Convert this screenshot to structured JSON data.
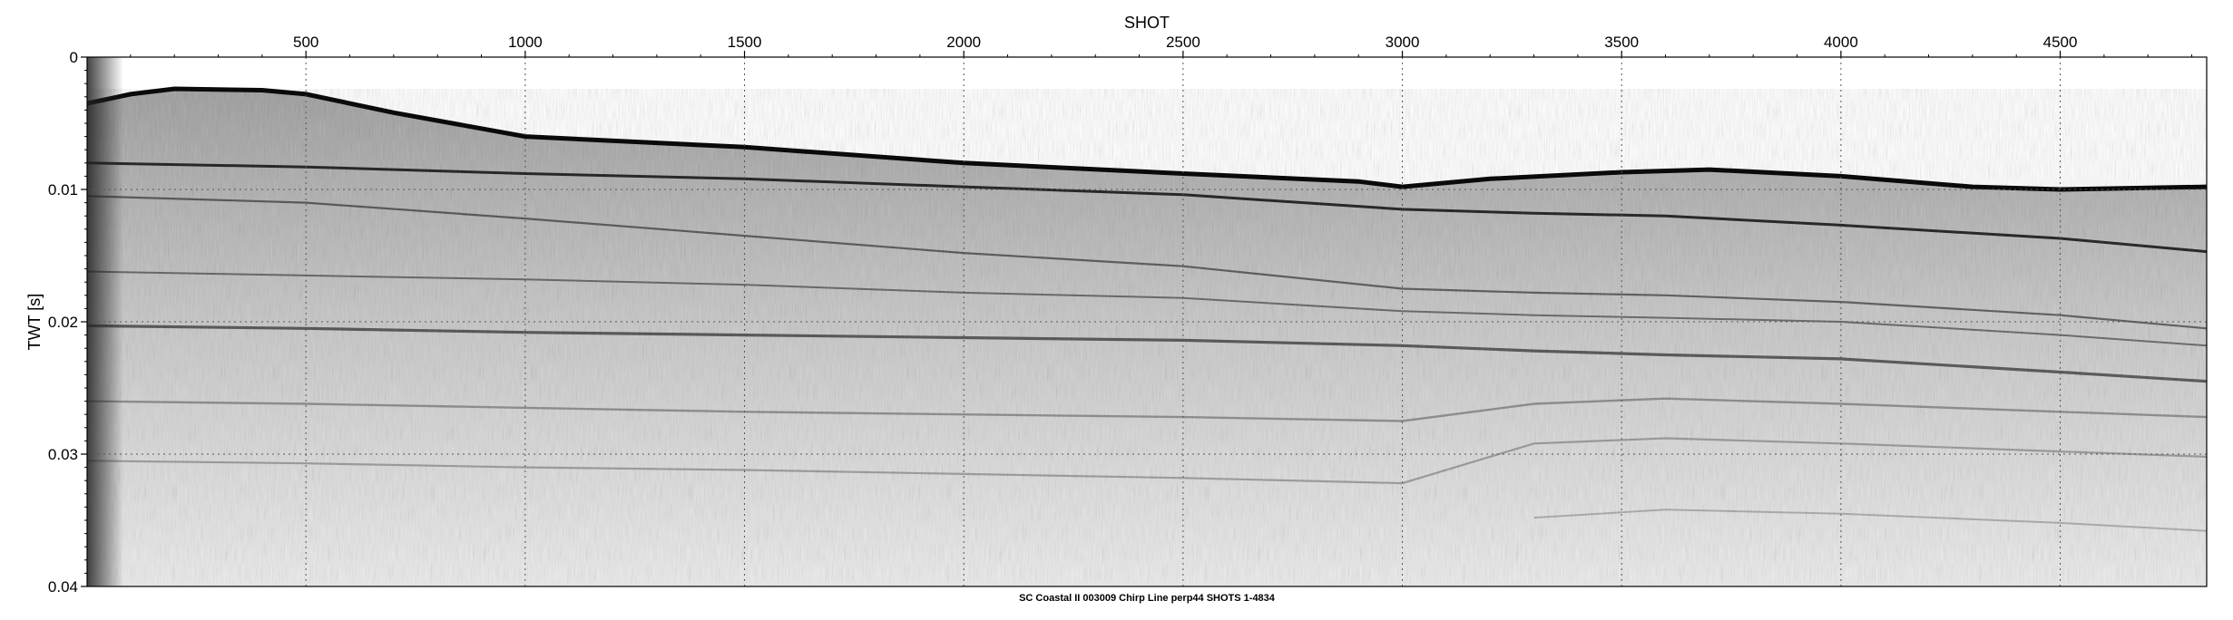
{
  "chart_data": {
    "type": "heatmap",
    "title": "",
    "caption": "SC Coastal II 003009 Chirp Line perp44 SHOTS 1-4834",
    "xlabel": "SHOT",
    "ylabel": "TWT [s]",
    "xlim": [
      1,
      4834
    ],
    "ylim": [
      0,
      0.04
    ],
    "x_ticks": [
      500,
      1000,
      1500,
      2000,
      2500,
      3000,
      3500,
      4000,
      4500
    ],
    "y_ticks": [
      0,
      0.01,
      0.02,
      0.03,
      0.04
    ],
    "y_tick_labels": [
      "0",
      "0.01",
      "0.02",
      "0.03",
      "0.04"
    ],
    "x_axis_position": "top",
    "grid": true,
    "colormap": "grayscale",
    "seafloor_twt": {
      "shot": [
        1,
        100,
        200,
        400,
        500,
        700,
        1000,
        1500,
        2000,
        2500,
        2900,
        3000,
        3200,
        3500,
        3700,
        4000,
        4300,
        4500,
        4834
      ],
      "twt": [
        0.0035,
        0.0028,
        0.0024,
        0.0025,
        0.0028,
        0.0042,
        0.006,
        0.0068,
        0.008,
        0.0088,
        0.0094,
        0.0098,
        0.0092,
        0.0087,
        0.0085,
        0.009,
        0.0098,
        0.01,
        0.0098
      ]
    },
    "reflectors": [
      {
        "shot": [
          1,
          500,
          1000,
          1500,
          2000,
          2500,
          3000,
          3300,
          3600,
          4000,
          4500,
          4834
        ],
        "twt": [
          0.008,
          0.0083,
          0.0088,
          0.0092,
          0.0098,
          0.0104,
          0.0115,
          0.0118,
          0.012,
          0.0127,
          0.0137,
          0.0147
        ]
      },
      {
        "shot": [
          1,
          500,
          1000,
          1500,
          2000,
          2500,
          3000,
          3300,
          3600,
          4000,
          4500,
          4834
        ],
        "twt": [
          0.0105,
          0.011,
          0.0122,
          0.0135,
          0.0148,
          0.0158,
          0.0175,
          0.0178,
          0.018,
          0.0185,
          0.0195,
          0.0205
        ]
      },
      {
        "shot": [
          1,
          500,
          1000,
          1500,
          2000,
          2500,
          3000,
          3300,
          3600,
          4000,
          4500,
          4834
        ],
        "twt": [
          0.0162,
          0.0165,
          0.0168,
          0.0172,
          0.0178,
          0.0182,
          0.0192,
          0.0195,
          0.0197,
          0.02,
          0.021,
          0.0218
        ]
      },
      {
        "shot": [
          1,
          500,
          1000,
          1500,
          2000,
          2500,
          3000,
          3300,
          3600,
          4000,
          4500,
          4834
        ],
        "twt": [
          0.0203,
          0.0205,
          0.0208,
          0.021,
          0.0212,
          0.0214,
          0.0218,
          0.0222,
          0.0225,
          0.0228,
          0.0238,
          0.0245
        ]
      },
      {
        "shot": [
          1,
          500,
          1000,
          1500,
          2000,
          2500,
          3000,
          3300,
          3600,
          4000,
          4500,
          4834
        ],
        "twt": [
          0.026,
          0.0262,
          0.0265,
          0.0268,
          0.027,
          0.0272,
          0.0275,
          0.0262,
          0.0258,
          0.0262,
          0.0268,
          0.0272
        ]
      },
      {
        "shot": [
          1,
          500,
          1000,
          1500,
          2000,
          2500,
          3000,
          3300,
          3600,
          4000,
          4500,
          4834
        ],
        "twt": [
          0.0305,
          0.0307,
          0.031,
          0.0312,
          0.0315,
          0.0318,
          0.0322,
          0.0292,
          0.0288,
          0.0292,
          0.0298,
          0.0302
        ]
      },
      {
        "shot": [
          3300,
          3600,
          4000,
          4500,
          4834
        ],
        "twt": [
          0.0348,
          0.0342,
          0.0345,
          0.0352,
          0.0358
        ]
      }
    ]
  }
}
